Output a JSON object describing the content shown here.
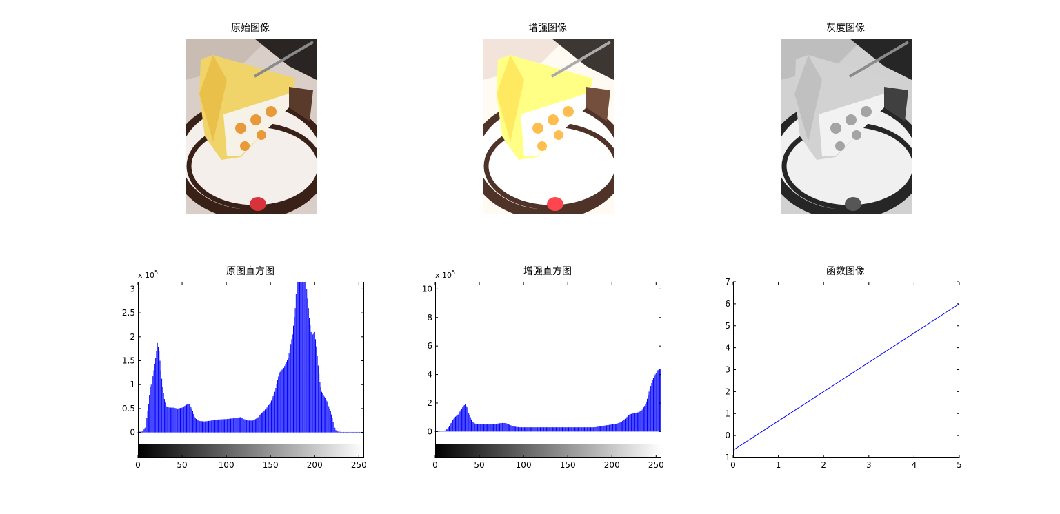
{
  "figure": {
    "background": "#ffffff",
    "image_panels": [
      {
        "title": "原始图像",
        "variant": "original"
      },
      {
        "title": "增强图像",
        "variant": "enhanced"
      },
      {
        "title": "灰度图像",
        "variant": "gray"
      }
    ]
  },
  "chart_data": [
    {
      "type": "bar",
      "title": "原图直方图",
      "color": "#0000ff",
      "colorbar": true,
      "exponent_label": "x 10",
      "exponent": "5",
      "xlim": [
        0,
        256
      ],
      "ylim": [
        -0.25,
        3.15
      ],
      "xticks": [
        0,
        50,
        100,
        150,
        200,
        250
      ],
      "yticks": [
        0,
        0.5,
        1,
        1.5,
        2,
        2.5,
        3
      ],
      "yticklabels": [
        "0",
        "0.5",
        "1",
        "1.5",
        "2",
        "2.5",
        "3"
      ],
      "x": [
        0,
        5,
        8,
        10,
        12,
        14,
        16,
        18,
        20,
        22,
        24,
        26,
        28,
        30,
        32,
        34,
        36,
        40,
        45,
        50,
        55,
        58,
        61,
        64,
        67,
        70,
        75,
        80,
        90,
        100,
        110,
        116,
        120,
        125,
        130,
        135,
        140,
        145,
        150,
        155,
        160,
        165,
        170,
        175,
        178,
        180,
        182,
        184,
        186,
        190,
        194,
        196,
        198,
        200,
        202,
        204,
        206,
        208,
        210,
        212,
        214,
        216,
        218,
        220,
        222,
        224,
        226,
        230,
        235,
        240,
        250,
        255
      ],
      "values": [
        0.01,
        0.02,
        0.1,
        0.3,
        0.6,
        0.95,
        1.05,
        1.3,
        1.55,
        1.87,
        1.7,
        1.3,
        0.95,
        0.7,
        0.55,
        0.53,
        0.52,
        0.52,
        0.5,
        0.52,
        0.58,
        0.6,
        0.5,
        0.33,
        0.26,
        0.24,
        0.23,
        0.24,
        0.27,
        0.28,
        0.3,
        0.32,
        0.28,
        0.25,
        0.25,
        0.3,
        0.4,
        0.5,
        0.62,
        0.85,
        1.25,
        1.35,
        1.55,
        2.05,
        2.6,
        3.2,
        3.2,
        3.2,
        3.2,
        3.2,
        2.4,
        2.1,
        2.05,
        2.1,
        1.8,
        1.4,
        1.05,
        0.85,
        0.78,
        0.72,
        0.65,
        0.55,
        0.45,
        0.3,
        0.15,
        0.05,
        0.02,
        0.01,
        0.01,
        0.01,
        0.01,
        0.01
      ]
    },
    {
      "type": "bar",
      "title": "增强直方图",
      "color": "#0000ff",
      "colorbar": true,
      "exponent_label": "x 10",
      "exponent": "5",
      "xlim": [
        0,
        256
      ],
      "ylim": [
        -0.9,
        10.5
      ],
      "xticks": [
        0,
        50,
        100,
        150,
        200,
        250
      ],
      "yticks": [
        0,
        2,
        4,
        6,
        8,
        10
      ],
      "yticklabels": [
        "0",
        "2",
        "4",
        "6",
        "8",
        "10"
      ],
      "x": [
        0,
        10,
        12,
        14,
        16,
        18,
        20,
        22,
        24,
        26,
        28,
        30,
        32,
        34,
        36,
        38,
        40,
        42,
        44,
        46,
        48,
        50,
        55,
        60,
        65,
        70,
        75,
        80,
        85,
        90,
        95,
        100,
        120,
        140,
        160,
        180,
        185,
        190,
        195,
        200,
        205,
        210,
        215,
        220,
        225,
        230,
        234,
        238,
        240,
        242,
        244,
        246,
        248,
        250,
        252,
        255
      ],
      "values": [
        0.0,
        0.05,
        0.1,
        0.2,
        0.4,
        0.6,
        0.8,
        1.0,
        1.1,
        1.2,
        1.4,
        1.6,
        1.8,
        1.9,
        1.7,
        1.3,
        1.0,
        0.7,
        0.6,
        0.55,
        0.55,
        0.55,
        0.5,
        0.5,
        0.5,
        0.55,
        0.6,
        0.6,
        0.45,
        0.35,
        0.3,
        0.3,
        0.3,
        0.3,
        0.3,
        0.3,
        0.35,
        0.4,
        0.45,
        0.5,
        0.55,
        0.65,
        0.9,
        1.2,
        1.3,
        1.35,
        1.5,
        1.9,
        2.3,
        2.8,
        3.2,
        3.6,
        3.9,
        4.1,
        4.3,
        4.4
      ]
    },
    {
      "type": "line",
      "title": "函数图像",
      "color": "#0000ff",
      "colorbar": false,
      "xlim": [
        0,
        5
      ],
      "ylim": [
        -1,
        7
      ],
      "xticks": [
        0,
        1,
        2,
        3,
        4,
        5
      ],
      "yticks": [
        -1,
        0,
        1,
        2,
        3,
        4,
        5,
        6,
        7
      ],
      "yticklabels": [
        "-1",
        "0",
        "1",
        "2",
        "3",
        "4",
        "5",
        "6",
        "7"
      ],
      "x": [
        0,
        5
      ],
      "values": [
        -0.67,
        6.0
      ]
    }
  ]
}
